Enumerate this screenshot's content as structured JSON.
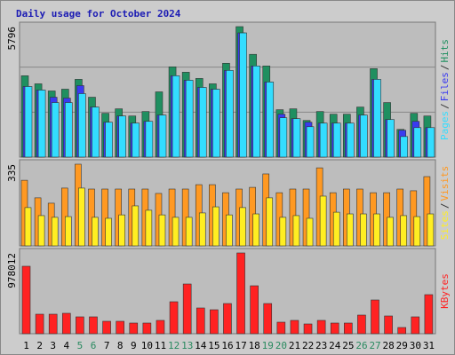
{
  "chart_data": [
    {
      "type": "bar",
      "title": "Daily usage for October 2024",
      "ylim": [
        0,
        5796
      ],
      "yticks": [
        5796
      ],
      "legend_separator": "/",
      "series": [
        {
          "name": "Pages",
          "color": "#33ddff",
          "values": [
            3136,
            2978,
            2422,
            2422,
            2819,
            2223,
            1548,
            1826,
            1509,
            1588,
            1866,
            3613,
            3414,
            3097,
            3017,
            3851,
            5518,
            4049,
            3335,
            1747,
            1707,
            1350,
            1509,
            1509,
            1509,
            1866,
            3454,
            1667,
            913,
            1310,
            1310
          ]
        },
        {
          "name": "Files",
          "color": "#3a3af0",
          "values": [
            3136,
            2978,
            2660,
            2620,
            3176,
            2223,
            1548,
            1826,
            1509,
            1588,
            1866,
            3613,
            3414,
            3097,
            3017,
            3851,
            5518,
            4049,
            3335,
            1905,
            1707,
            1548,
            1509,
            1509,
            1509,
            1866,
            3454,
            1667,
            1191,
            1588,
            1310
          ]
        },
        {
          "name": "Hits",
          "color": "#1f8f60",
          "values": [
            3613,
            3255,
            2938,
            3017,
            3454,
            2660,
            1945,
            2144,
            1826,
            2025,
            2898,
            4010,
            3771,
            3494,
            3255,
            4168,
            5796,
            4565,
            4049,
            2104,
            2144,
            1627,
            2025,
            1905,
            1905,
            2223,
            3930,
            2422,
            1230,
            1945,
            1826
          ]
        }
      ]
    },
    {
      "type": "bar",
      "ylim": [
        0,
        335
      ],
      "yticks": [
        335
      ],
      "legend_separator": "/",
      "series": [
        {
          "name": "Sites",
          "color": "#ffee22",
          "values": [
            157,
            124,
            117,
            120,
            237,
            117,
            113,
            127,
            164,
            146,
            127,
            117,
            117,
            135,
            160,
            127,
            157,
            131,
            197,
            117,
            124,
            113,
            204,
            138,
            131,
            131,
            131,
            117,
            124,
            120,
            131
          ]
        },
        {
          "name": "Visits",
          "color": "#ff9922",
          "values": [
            269,
            197,
            175,
            237,
            335,
            233,
            233,
            233,
            233,
            233,
            215,
            233,
            233,
            251,
            251,
            218,
            233,
            240,
            295,
            218,
            233,
            233,
            320,
            218,
            233,
            233,
            218,
            218,
            233,
            226,
            284
          ]
        }
      ]
    },
    {
      "type": "bar",
      "ylim": [
        0,
        978012
      ],
      "yticks": [
        978012
      ],
      "series": [
        {
          "name": "KBytes",
          "color": "#ff2222",
          "values": [
            816800,
            236400,
            236400,
            247200,
            204200,
            204200,
            150500,
            150500,
            129000,
            129000,
            161200,
            386900,
            601800,
            311700,
            290200,
            365400,
            978012,
            580300,
            365400,
            139700,
            161200,
            118200,
            161200,
            129000,
            129000,
            225700,
            408400,
            214900,
            75200,
            204200,
            472900
          ]
        }
      ],
      "categories": [
        "1",
        "2",
        "3",
        "4",
        "5",
        "6",
        "7",
        "8",
        "9",
        "10",
        "11",
        "12",
        "13",
        "14",
        "15",
        "16",
        "17",
        "18",
        "19",
        "20",
        "21",
        "22",
        "23",
        "24",
        "25",
        "26",
        "27",
        "28",
        "29",
        "30",
        "31"
      ],
      "category_colors": [
        "#000000",
        "#000000",
        "#000000",
        "#000000",
        "#2a8a60",
        "#2a8a60",
        "#000000",
        "#000000",
        "#000000",
        "#000000",
        "#000000",
        "#2a8a60",
        "#2a8a60",
        "#000000",
        "#000000",
        "#000000",
        "#000000",
        "#000000",
        "#2a8a60",
        "#2a8a60",
        "#000000",
        "#000000",
        "#000000",
        "#000000",
        "#000000",
        "#2a8a60",
        "#2a8a60",
        "#000000",
        "#000000",
        "#000000",
        "#000000"
      ]
    }
  ]
}
